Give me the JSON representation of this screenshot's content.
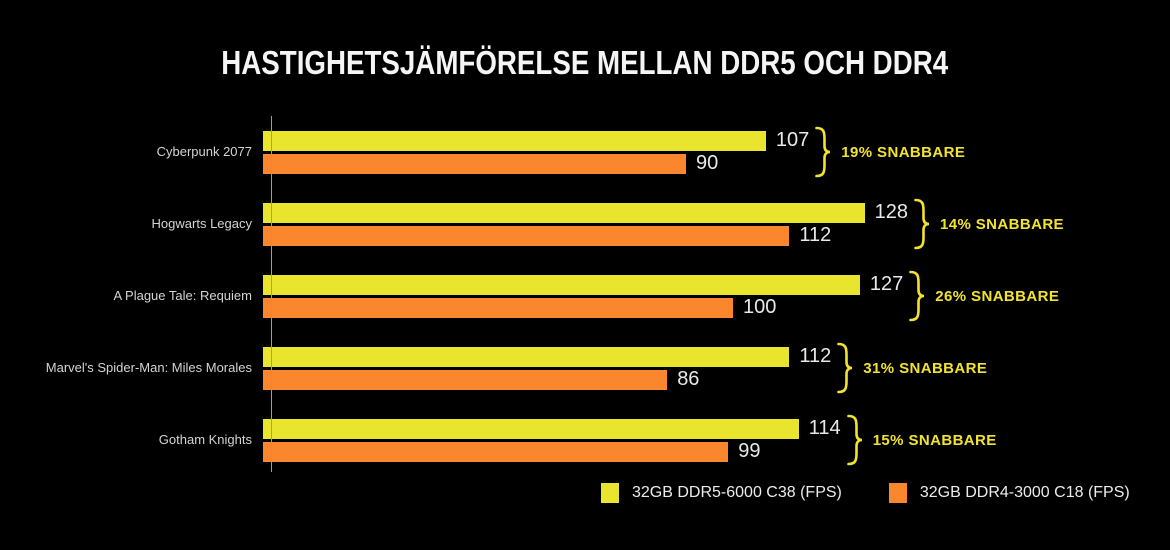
{
  "title": "HASTIGHETSJÄMFÖRELSE MELLAN DDR5 OCH DDR4",
  "colors": {
    "background": "#000000",
    "ddr5_bar": "#e9e52f",
    "ddr4_bar": "#fa872d",
    "accent_text": "#f2e32e",
    "value_text": "#e9e9e9",
    "category_text": "#d4d4d4",
    "axis_line": "#9b9b9b"
  },
  "chart_data": {
    "type": "bar",
    "orientation": "horizontal",
    "title": "HASTIGHETSJÄMFÖRELSE MELLAN DDR5 OCH DDR4",
    "categories": [
      "Cyberpunk 2077",
      "Hogwarts Legacy",
      "A Plague Tale: Requiem",
      "Marvel's Spider-Man: Miles Morales",
      "Gotham Knights"
    ],
    "series": [
      {
        "name": "32GB DDR5-6000 C38 (FPS)",
        "color": "#e9e52f",
        "values": [
          107,
          128,
          127,
          112,
          114
        ]
      },
      {
        "name": "32GB DDR4-3000 C18 (FPS)",
        "color": "#fa872d",
        "values": [
          90,
          112,
          100,
          86,
          99
        ]
      }
    ],
    "annotations": [
      "19% SNABBARE",
      "14% SNABBARE",
      "26% SNABBARE",
      "31% SNABBARE",
      "15% SNABBARE"
    ],
    "xlim": [
      0,
      136
    ],
    "grid": false,
    "value_labels": true,
    "legend_position": "bottom-right"
  },
  "legend": {
    "items": [
      {
        "label": "32GB DDR5-6000 C38 (FPS)",
        "series": "ddr5"
      },
      {
        "label": "32GB DDR4-3000 C18 (FPS)",
        "series": "ddr4"
      }
    ]
  }
}
